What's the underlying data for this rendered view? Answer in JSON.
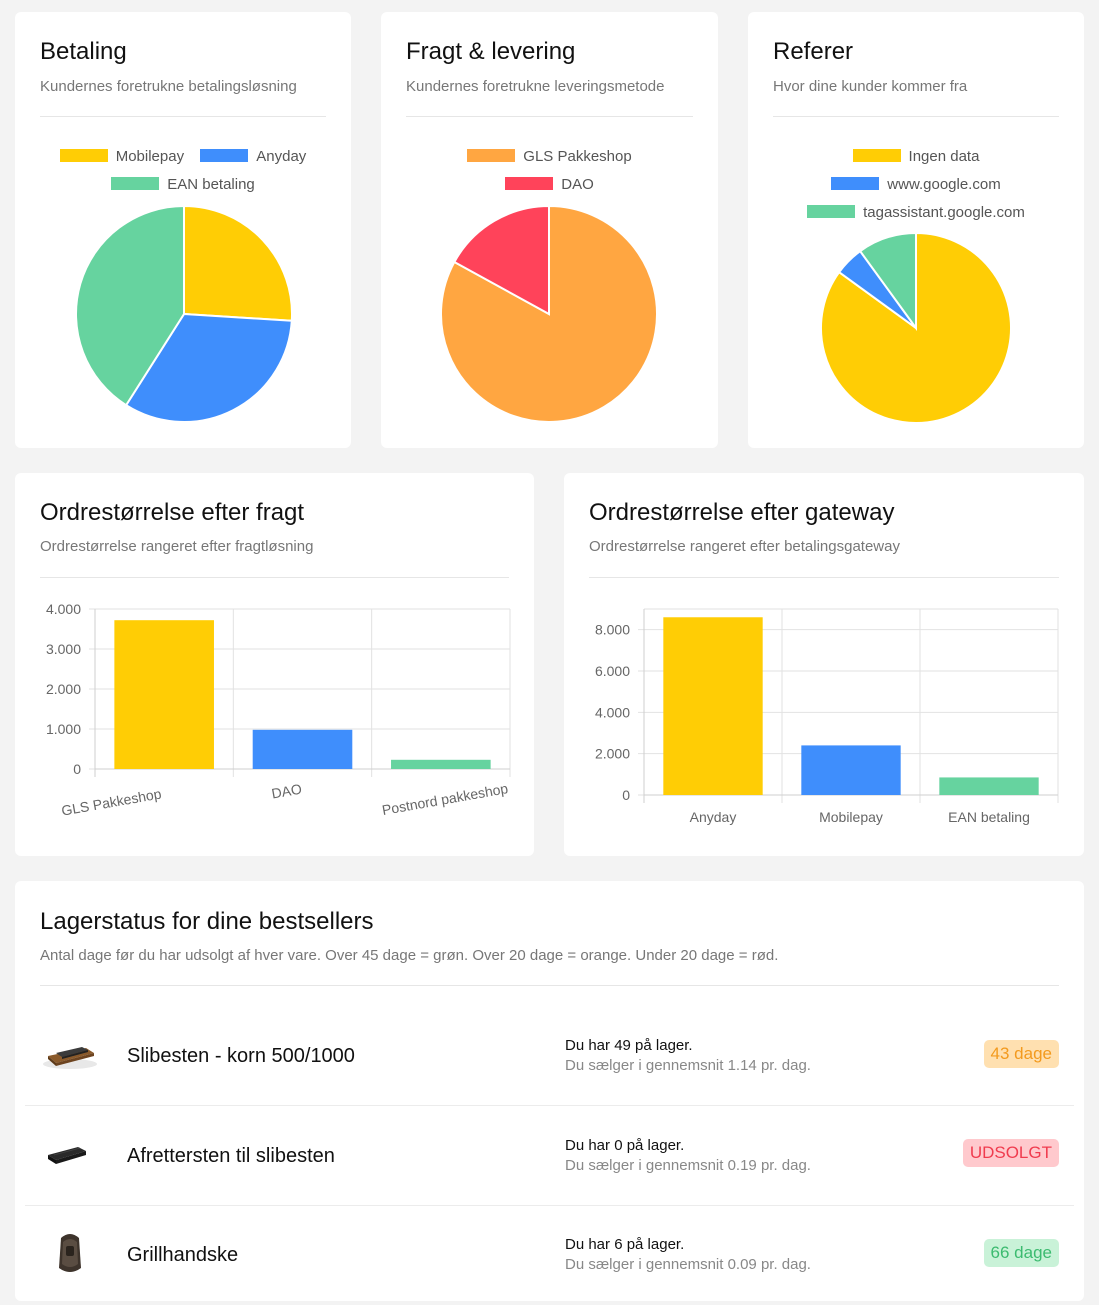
{
  "colors": {
    "yellow": "#FFCD05",
    "blue": "#3F8EFC",
    "green": "#66D39F",
    "orange": "#FFA641",
    "red": "#FF435A"
  },
  "payment": {
    "title": "Betaling",
    "subtitle": "Kundernes foretrukne betalingsløsning",
    "legend": [
      "Mobilepay",
      "Anyday",
      "EAN betaling"
    ],
    "chart_data": {
      "type": "pie",
      "labels": [
        "Mobilepay",
        "Anyday",
        "EAN betaling"
      ],
      "values": [
        26,
        33,
        41
      ],
      "colors": [
        "#FFCD05",
        "#3F8EFC",
        "#66D39F"
      ]
    }
  },
  "shipping": {
    "title": "Fragt & levering",
    "subtitle": "Kundernes foretrukne leveringsmetode",
    "legend": [
      "GLS Pakkeshop",
      "DAO"
    ],
    "chart_data": {
      "type": "pie",
      "labels": [
        "GLS Pakkeshop",
        "DAO"
      ],
      "values": [
        83,
        17
      ],
      "colors": [
        "#FFA641",
        "#FF435A"
      ]
    }
  },
  "referrer": {
    "title": "Referer",
    "subtitle": "Hvor dine kunder kommer fra",
    "legend": [
      "Ingen data",
      "www.google.com",
      "tagassistant.google.com"
    ],
    "chart_data": {
      "type": "pie",
      "labels": [
        "Ingen data",
        "www.google.com",
        "tagassistant.google.com"
      ],
      "values": [
        85,
        5,
        10
      ],
      "colors": [
        "#FFCD05",
        "#3F8EFC",
        "#66D39F"
      ]
    }
  },
  "order_by_shipping": {
    "title": "Ordrestørrelse efter fragt",
    "subtitle": "Ordrestørrelse rangeret efter fragtløsning",
    "chart_data": {
      "type": "bar",
      "categories": [
        "GLS Pakkeshop",
        "DAO",
        "Postnord pakkeshop"
      ],
      "values": [
        3720,
        980,
        230
      ],
      "colors": [
        "#FFCD05",
        "#3F8EFC",
        "#66D39F"
      ],
      "ylim": [
        0,
        4000
      ],
      "yticks": [
        0,
        1000,
        2000,
        3000,
        4000
      ],
      "ytick_labels": [
        "0",
        "1.000",
        "2.000",
        "3.000",
        "4.000"
      ]
    }
  },
  "order_by_gateway": {
    "title": "Ordrestørrelse efter gateway",
    "subtitle": "Ordrestørrelse rangeret efter betalingsgateway",
    "chart_data": {
      "type": "bar",
      "categories": [
        "Anyday",
        "Mobilepay",
        "EAN betaling"
      ],
      "values": [
        8600,
        2400,
        850
      ],
      "colors": [
        "#FFCD05",
        "#3F8EFC",
        "#66D39F"
      ],
      "ylim": [
        0,
        9000
      ],
      "yticks": [
        0,
        2000,
        4000,
        6000,
        8000
      ],
      "ytick_labels": [
        "0",
        "2.000",
        "4.000",
        "6.000",
        "8.000"
      ]
    }
  },
  "stock": {
    "title": "Lagerstatus for dine bestsellers",
    "subtitle": "Antal dage før du har udsolgt af hver vare. Over 45 dage = grøn. Over 20 dage = orange. Under 20 dage = rød.",
    "items": [
      {
        "name": "Slibesten - korn 500/1000",
        "stock": "Du har 49 på lager.",
        "avg": "Du sælger i gennemsnit 1.14 pr. dag.",
        "badge": "43 dage",
        "badge_status": "orange"
      },
      {
        "name": "Afrettersten til slibesten",
        "stock": "Du har 0 på lager.",
        "avg": "Du sælger i gennemsnit 0.19 pr. dag.",
        "badge": "UDSOLGT",
        "badge_status": "red"
      },
      {
        "name": "Grillhandske",
        "stock": "Du har 6 på lager.",
        "avg": "Du sælger i gennemsnit 0.09 pr. dag.",
        "badge": "66 dage",
        "badge_status": "green"
      }
    ]
  }
}
